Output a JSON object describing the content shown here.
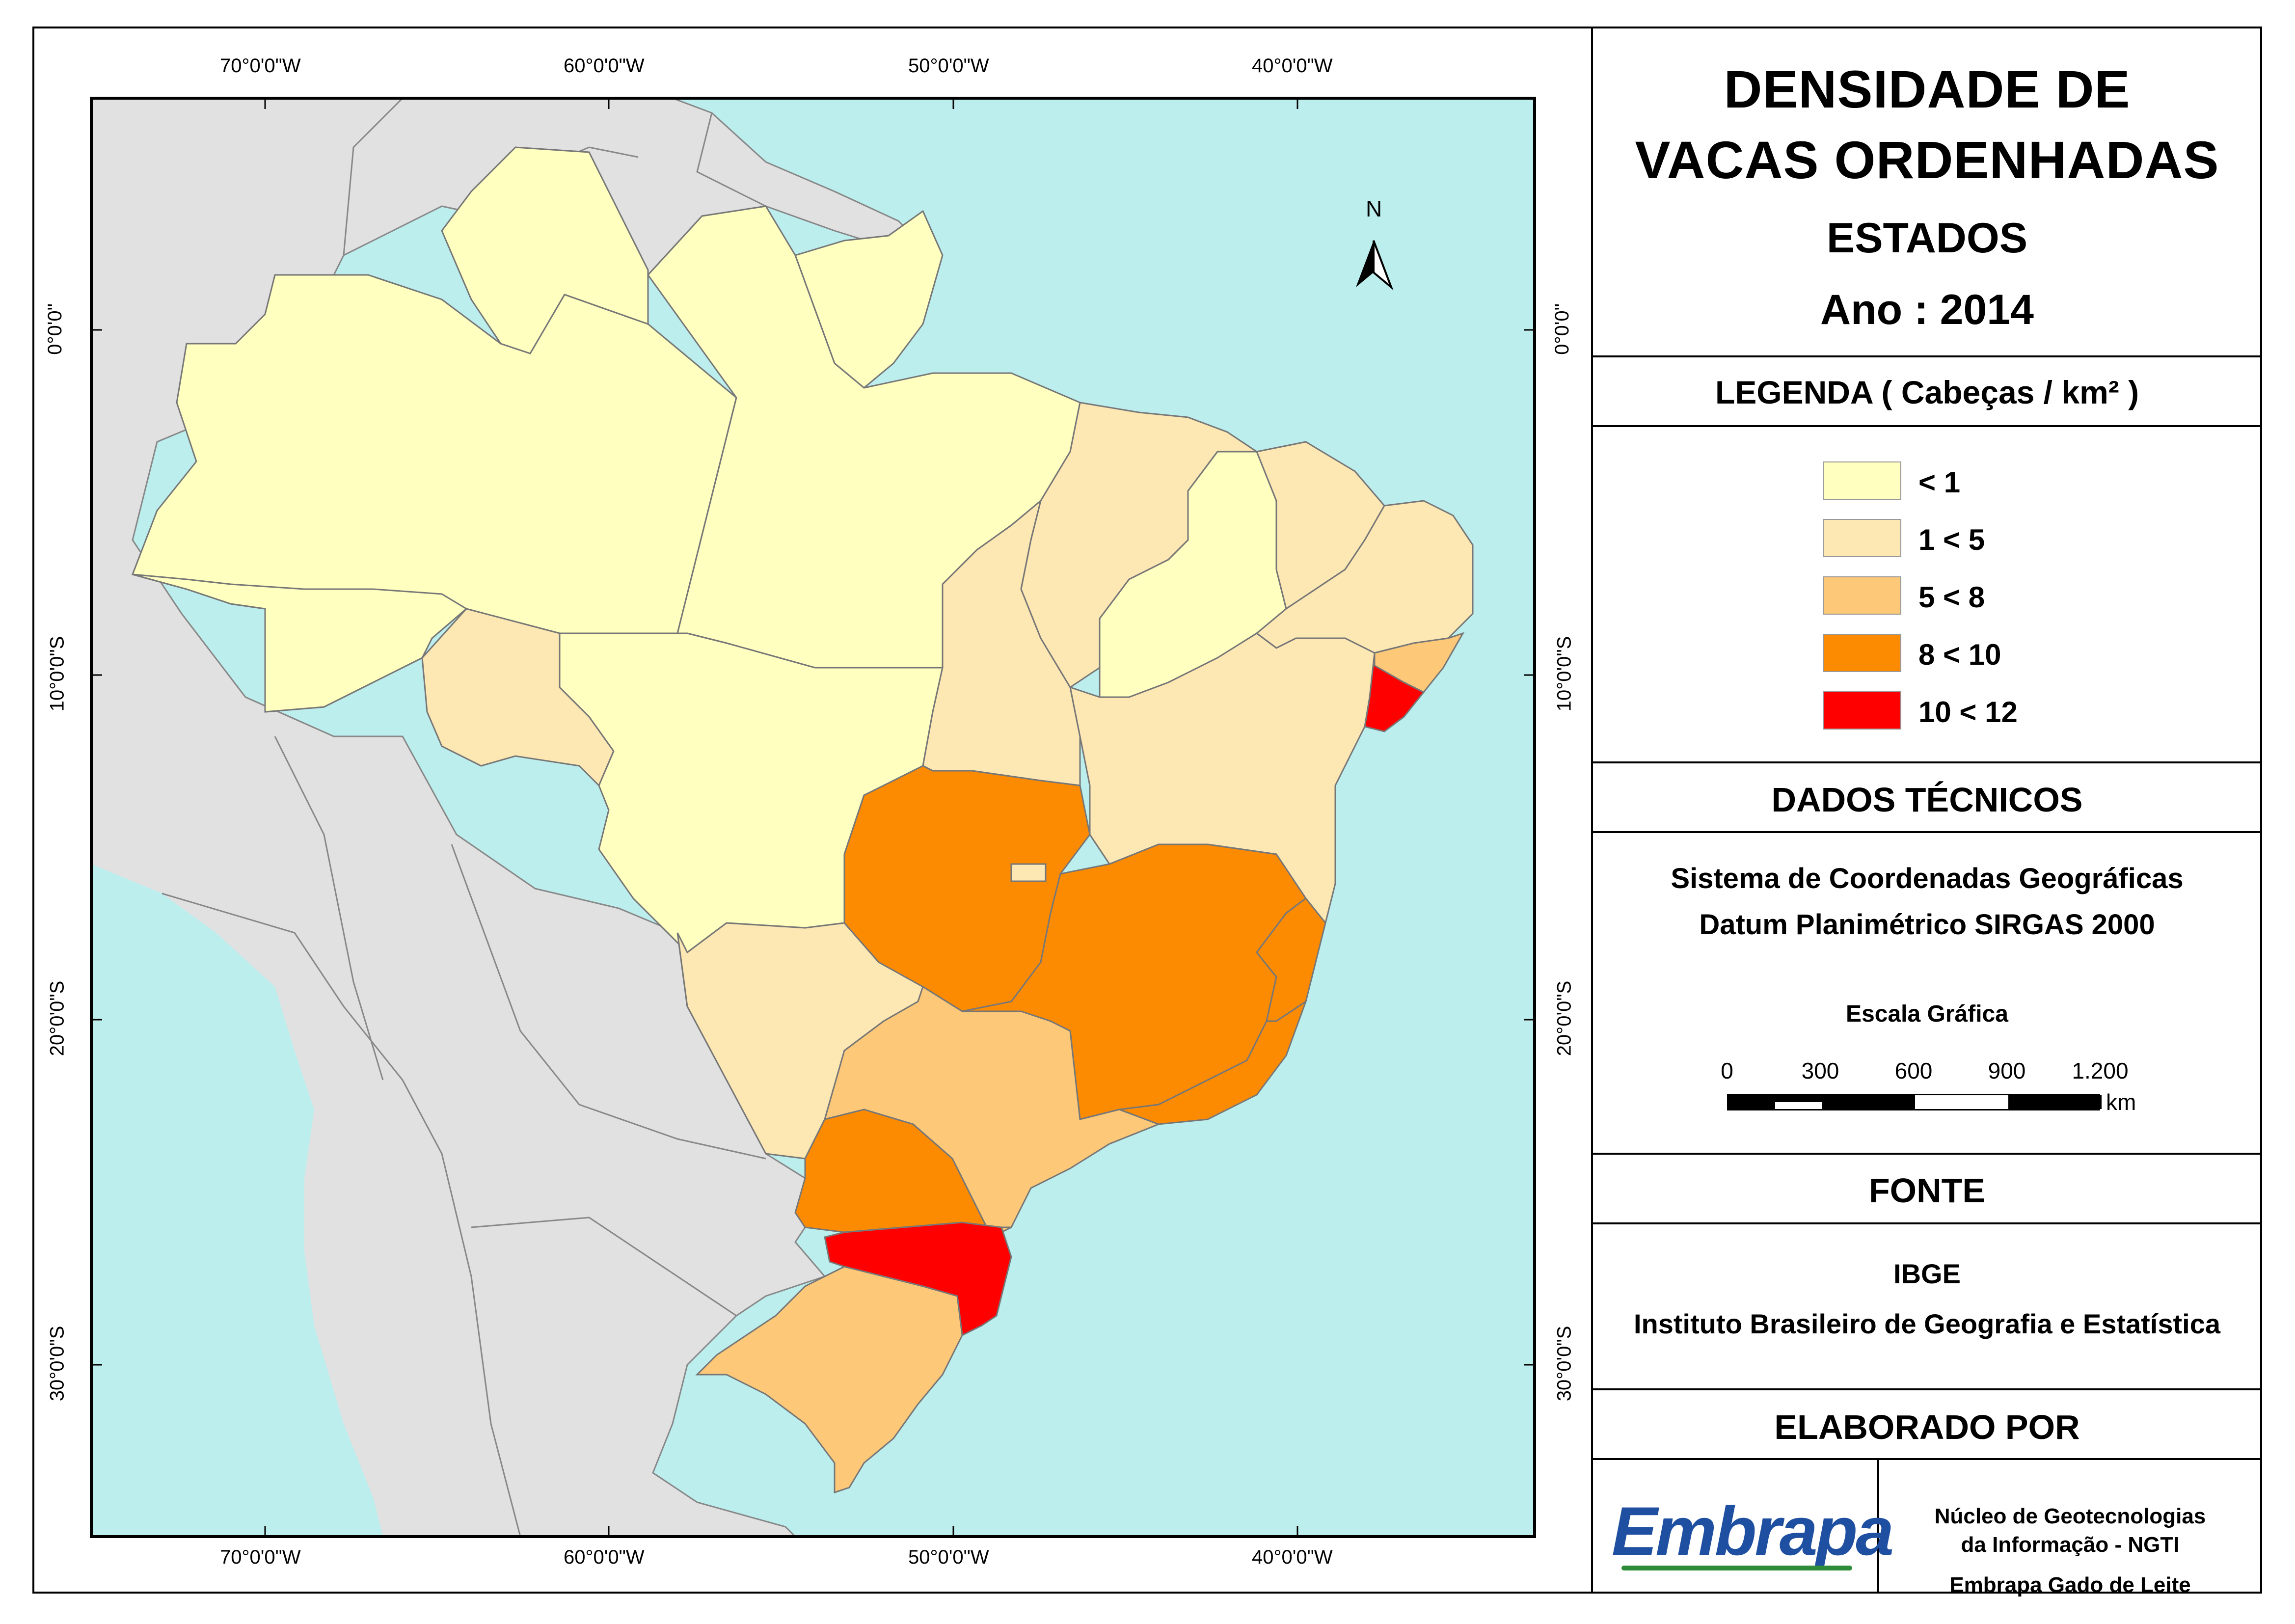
{
  "title": {
    "line1": "DENSIDADE DE",
    "line2": "VACAS ORDENHADAS",
    "subtitle": "ESTADOS",
    "year": "Ano : 2014"
  },
  "legend": {
    "title": "LEGENDA ( Cabeças / km² )",
    "items": [
      {
        "label": "< 1",
        "color": "#FFFFC0"
      },
      {
        "label": "1 < 5",
        "color": "#FDE8B4"
      },
      {
        "label": "5 < 8",
        "color": "#FDC978"
      },
      {
        "label": "8 < 10",
        "color": "#FC8B01"
      },
      {
        "label": "10 < 12",
        "color": "#FE0000"
      }
    ]
  },
  "technical": {
    "title": "DADOS TÉCNICOS",
    "line1": "Sistema de Coordenadas Geográficas",
    "line2": "Datum Planimétrico SIRGAS 2000",
    "scale_title": "Escala Gráfica",
    "scale_ticks": [
      "0",
      "300",
      "600",
      "900",
      "1.200"
    ],
    "scale_unit": "km"
  },
  "source": {
    "title": "FONTE",
    "line1": "IBGE",
    "line2": "Instituto Brasileiro de Geografia e Estatística"
  },
  "author": {
    "title": "ELABORADO POR",
    "logo_text": "Embrapa",
    "line1": "Núcleo de Geotecnologias",
    "line2": "da Informação - NGTI",
    "line3": "Embrapa Gado de Leite"
  },
  "map": {
    "north_label": "N",
    "lon_labels": [
      "70°0'0\"W",
      "60°0'0\"W",
      "50°0'0\"W",
      "40°0'0\"W"
    ],
    "lat_labels": [
      "0°0'0\"",
      "10°0'0\"S",
      "20°0'0\"S",
      "30°0'0\"S"
    ],
    "colors": {
      "ocean": "#BCEEEE",
      "land": "#E1E1E1",
      "border": "#888888"
    }
  }
}
